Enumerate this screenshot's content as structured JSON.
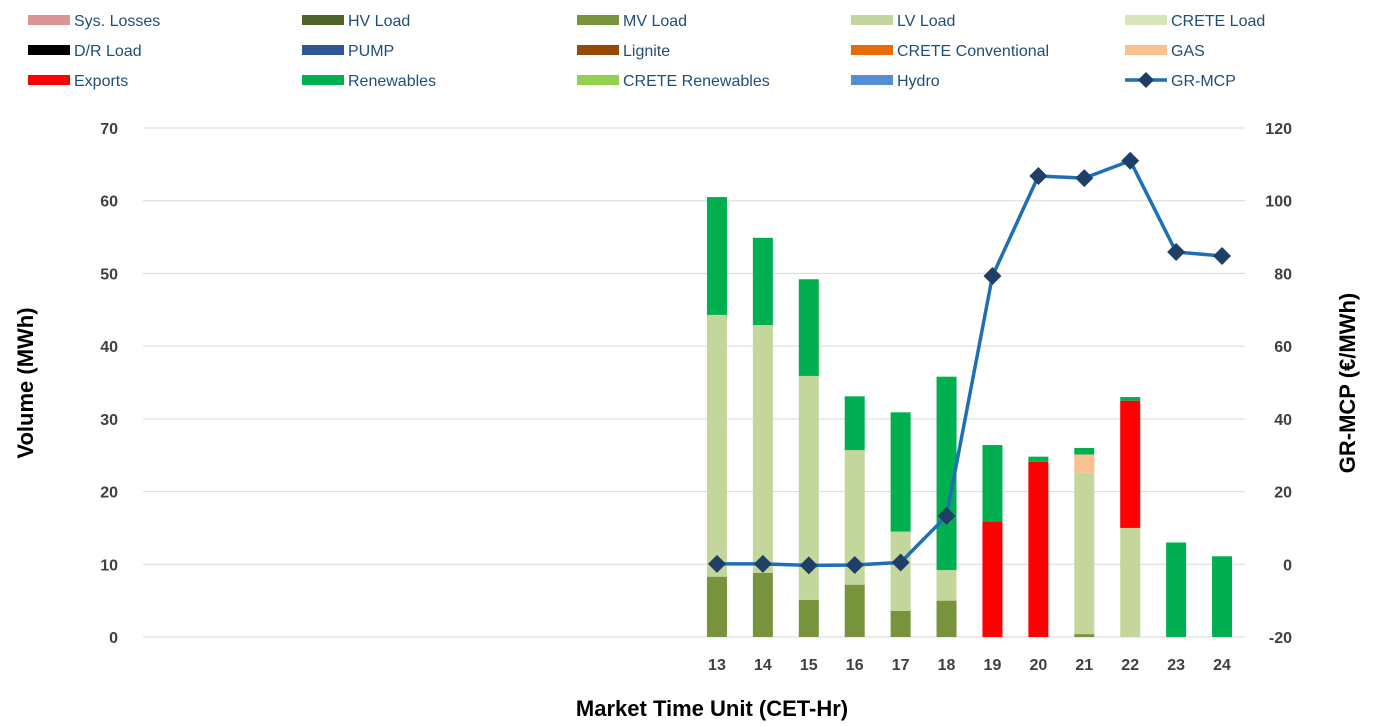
{
  "chart_data": {
    "type": "bar",
    "subtype": "stacked-bar-with-line-secondary-axis",
    "categories": [
      "13",
      "14",
      "15",
      "16",
      "17",
      "18",
      "19",
      "20",
      "21",
      "22",
      "23",
      "24"
    ],
    "hidden_leading_categories": 12,
    "xlabel": "Market Time Unit (CET-Hr)",
    "ylabel": "Volume (MWh)",
    "y2label": "GR-MCP (€/MWh)",
    "ylim": [
      0,
      70
    ],
    "yticks": [
      0,
      10,
      20,
      30,
      40,
      50,
      60,
      70
    ],
    "y2lim": [
      -20,
      120
    ],
    "y2ticks": [
      -20,
      0,
      20,
      40,
      60,
      80,
      100,
      120
    ],
    "grid": true,
    "legend_position": "top",
    "series": [
      {
        "name": "Sys. Losses",
        "color": "#d99694",
        "kind": "bar",
        "values": [
          0,
          0,
          0,
          0,
          0,
          0,
          0,
          0,
          0,
          0,
          0,
          0
        ]
      },
      {
        "name": "HV Load",
        "color": "#4f6228",
        "kind": "bar",
        "values": [
          0,
          0,
          0,
          0,
          0,
          0,
          0,
          0,
          0,
          0,
          0,
          0
        ]
      },
      {
        "name": "MV Load",
        "color": "#77933c",
        "kind": "bar",
        "values": [
          8.3,
          8.8,
          5.1,
          7.2,
          3.6,
          5.0,
          0,
          0,
          0.4,
          0,
          0,
          0
        ]
      },
      {
        "name": "LV Load",
        "color": "#c3d69b",
        "kind": "bar",
        "values": [
          36.0,
          34.1,
          30.8,
          18.5,
          10.9,
          4.2,
          0,
          0,
          22.2,
          15.0,
          0,
          0
        ]
      },
      {
        "name": "CRETE Load",
        "color": "#d7e4bc",
        "kind": "bar",
        "values": [
          0,
          0,
          0,
          0,
          0,
          0,
          0,
          0,
          0,
          0,
          0,
          0
        ]
      },
      {
        "name": "D/R Load",
        "color": "#000000",
        "kind": "bar",
        "values": [
          0,
          0,
          0,
          0,
          0,
          0,
          0,
          0,
          0,
          0,
          0,
          0
        ]
      },
      {
        "name": "PUMP",
        "color": "#2f5597",
        "kind": "bar",
        "values": [
          0,
          0,
          0,
          0,
          0,
          0,
          0,
          0,
          0,
          0,
          0,
          0
        ]
      },
      {
        "name": "Lignite",
        "color": "#974706",
        "kind": "bar",
        "values": [
          0,
          0,
          0,
          0,
          0,
          0,
          0,
          0,
          0,
          0,
          0,
          0
        ]
      },
      {
        "name": "CRETE Conventional",
        "color": "#e46c0a",
        "kind": "bar",
        "values": [
          0,
          0,
          0,
          0,
          0,
          0,
          0,
          0,
          0,
          0,
          0,
          0
        ]
      },
      {
        "name": "GAS",
        "color": "#fac090",
        "kind": "bar",
        "values": [
          0,
          0,
          0,
          0,
          0,
          0,
          0,
          0,
          2.5,
          0,
          0,
          0
        ]
      },
      {
        "name": "Exports",
        "color": "#ff0000",
        "kind": "bar",
        "values": [
          0,
          0,
          0,
          0,
          0,
          0,
          15.9,
          24.1,
          0,
          17.5,
          0,
          0
        ]
      },
      {
        "name": "Renewables",
        "color": "#00b050",
        "kind": "bar",
        "values": [
          16.2,
          12.0,
          13.3,
          7.4,
          16.4,
          26.6,
          10.5,
          0.7,
          0.9,
          0.5,
          13.0,
          11.1
        ]
      },
      {
        "name": "CRETE Renewables",
        "color": "#92d050",
        "kind": "bar",
        "values": [
          0,
          0,
          0,
          0,
          0,
          0,
          0,
          0,
          0,
          0,
          0,
          0
        ]
      },
      {
        "name": "Hydro",
        "color": "#558ed5",
        "kind": "bar",
        "values": [
          0,
          0,
          0,
          0,
          0,
          0,
          0,
          0,
          0,
          0,
          0,
          0
        ]
      },
      {
        "name": "GR-MCP",
        "color": "#1f6fb5",
        "marker_color": "#1f3f66",
        "kind": "line",
        "axis": "secondary",
        "values": [
          0.1,
          0.1,
          -0.3,
          -0.2,
          0.5,
          13.3,
          79.3,
          106.8,
          106.2,
          111.0,
          85.9,
          84.8
        ]
      }
    ]
  }
}
